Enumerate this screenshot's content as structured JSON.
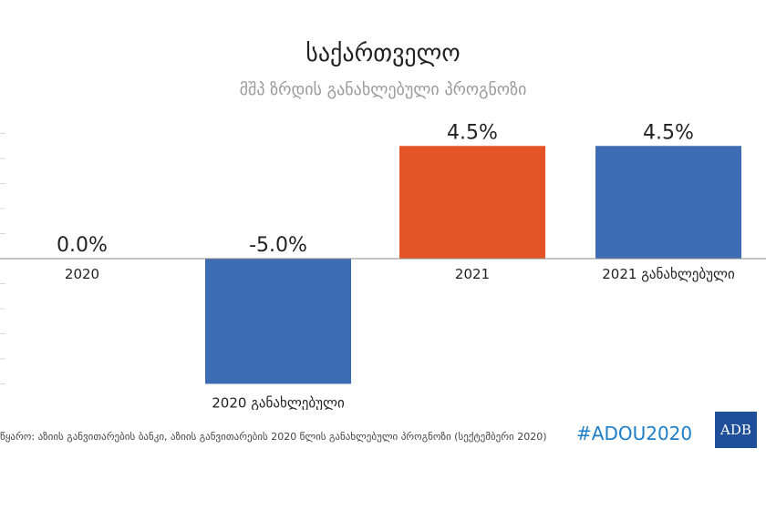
{
  "title": "საქართველო",
  "subtitle": "მშპ ზრდის განახლებული პროგნოზი",
  "source": "წყარო: აზიის განვითარების ბანკი, აზიის განვითარების 2020 წლის განახლებული პროგნოზი (სექტემბერი 2020)",
  "hashtag": "#ADOU2020",
  "logo_text": "ADB",
  "colors": {
    "blue": "#3d6cb4",
    "orange": "#e55427",
    "grid": "#d9d9d9",
    "axis": "#8a8a8a",
    "text": "#222222",
    "hashtag": "#1e7ec8",
    "logo": "#1f4e9a"
  },
  "chart_data": {
    "type": "bar",
    "title": "საქართველო",
    "subtitle": "მშპ ზრდის განახლებული პროგნოზი",
    "categories": [
      "2020",
      "2020 განახლებული",
      "2021",
      "2021 განახლებული"
    ],
    "values": [
      0.0,
      -5.0,
      4.5,
      4.5
    ],
    "data_labels": [
      "0.0%",
      "-5.0%",
      "4.5%",
      "4.5%"
    ],
    "bar_colors": [
      "#3d6cb4",
      "#3d6cb4",
      "#e55427",
      "#3d6cb4"
    ],
    "ylim": [
      -5,
      5
    ],
    "grid": true,
    "legend": "none"
  }
}
